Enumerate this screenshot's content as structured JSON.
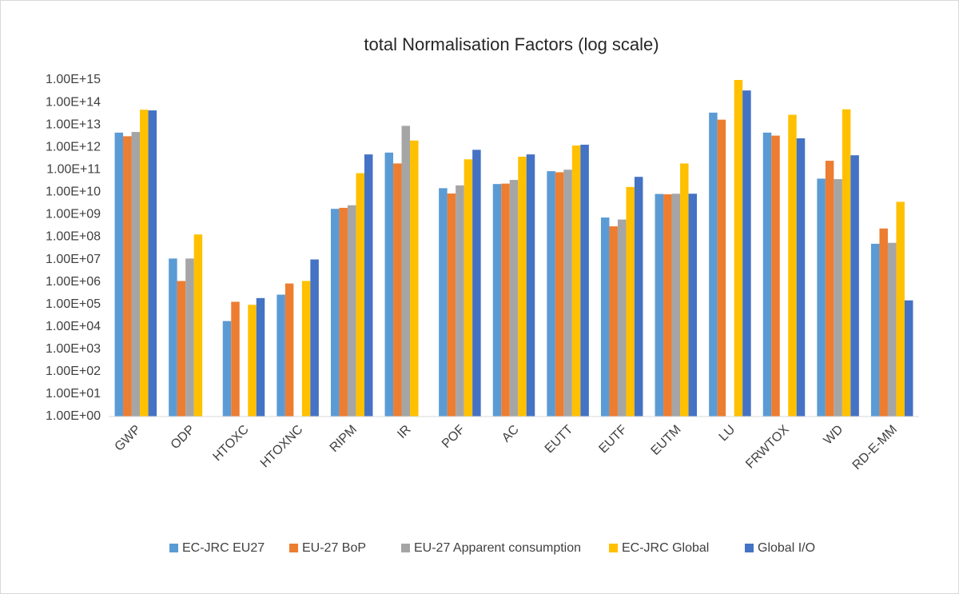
{
  "chart_data": {
    "type": "bar",
    "title": "total Normalisation Factors (log scale)",
    "log_scale": true,
    "grid": false,
    "legend": "bottom",
    "categories": [
      "GWP",
      "ODP",
      "HTOXC",
      "HTOXNC",
      "RIPM",
      "IR",
      "POF",
      "AC",
      "EUTT",
      "EUTF",
      "EUTM",
      "LU",
      "FRWTOX",
      "WD",
      "RD-E-MM"
    ],
    "series": [
      {
        "name": "EC-JRC EU27",
        "color": "#5b9bd5",
        "values": [
          4500000000000.0,
          11000000.0,
          18000.0,
          270000.0,
          1800000000.0,
          580000000000.0,
          15000000000.0,
          23000000000.0,
          86000000000.0,
          740000000.0,
          8300000000.0,
          35000000000000.0,
          4500000000000.0,
          40000000000.0,
          50000000.0
        ]
      },
      {
        "name": "EU-27 BoP",
        "color": "#ed7d31",
        "values": [
          3100000000000.0,
          1100000.0,
          130000.0,
          850000.0,
          2000000000.0,
          190000000000.0,
          8700000000.0,
          24000000000.0,
          77000000000.0,
          300000000.0,
          8000000000.0,
          17000000000000.0,
          3300000000000.0,
          250000000000.0,
          240000000.0
        ]
      },
      {
        "name": "EU-27 Apparent consumption",
        "color": "#a5a5a5",
        "values": [
          4800000000000.0,
          11000000.0,
          null,
          null,
          2600000000.0,
          9000000000000.0,
          20000000000.0,
          35000000000.0,
          100000000000.0,
          600000000.0,
          8500000000.0,
          null,
          null,
          38000000000.0,
          55000000.0
        ]
      },
      {
        "name": "EC-JRC Global",
        "color": "#ffc000",
        "values": [
          47000000000000.0,
          130000000.0,
          95000.0,
          1100000.0,
          70000000000.0,
          2000000000000.0,
          290000000000.0,
          380000000000.0,
          1200000000000.0,
          17000000000.0,
          190000000000.0,
          1000000000000000.0,
          28000000000000.0,
          49000000000000.0,
          3700000000.0
        ]
      },
      {
        "name": "Global I/O",
        "color": "#4472c4",
        "values": [
          44000000000000.0,
          null,
          190000.0,
          10000000.0,
          480000000000.0,
          null,
          770000000000.0,
          480000000000.0,
          1300000000000.0,
          48000000000.0,
          8500000000.0,
          340000000000000.0,
          2500000000000.0,
          440000000000.0,
          150000.0
        ]
      }
    ],
    "ylim": [
      1,
      1000000000000000.0
    ],
    "yticks": [
      {
        "value": 1,
        "label": "1.00E+00"
      },
      {
        "value": 10,
        "label": "1.00E+01"
      },
      {
        "value": 100,
        "label": "1.00E+02"
      },
      {
        "value": 1000,
        "label": "1.00E+03"
      },
      {
        "value": 10000,
        "label": "1.00E+04"
      },
      {
        "value": 100000,
        "label": "1.00E+05"
      },
      {
        "value": 1000000,
        "label": "1.00E+06"
      },
      {
        "value": 10000000,
        "label": "1.00E+07"
      },
      {
        "value": 100000000,
        "label": "1.00E+08"
      },
      {
        "value": 1000000000,
        "label": "1.00E+09"
      },
      {
        "value": 10000000000,
        "label": "1.00E+10"
      },
      {
        "value": 100000000000,
        "label": "1.00E+11"
      },
      {
        "value": 1000000000000,
        "label": "1.00E+12"
      },
      {
        "value": 10000000000000,
        "label": "1.00E+13"
      },
      {
        "value": 100000000000000,
        "label": "1.00E+14"
      },
      {
        "value": 1000000000000000.0,
        "label": "1.00E+15"
      }
    ]
  }
}
